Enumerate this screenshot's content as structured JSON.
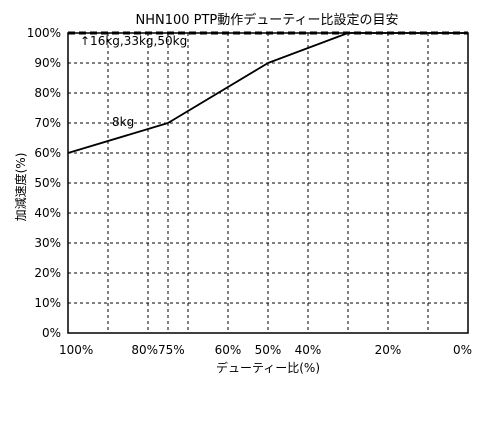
{
  "chart_data": {
    "type": "line",
    "title": "NHN100 PTP動作デューティー比設定の目安",
    "xlabel": "デューティー比(%)",
    "ylabel": "加減速度(%)",
    "x_axis_direction": "reversed",
    "xlim": [
      100,
      0
    ],
    "ylim": [
      0,
      100
    ],
    "x_ticks": [
      100,
      90,
      80,
      75,
      70,
      60,
      50,
      40,
      30,
      20,
      10,
      0
    ],
    "x_tick_labels": [
      {
        "value": 100,
        "label": "100%"
      },
      {
        "value": 80,
        "label": "80%75%"
      },
      {
        "value": 60,
        "label": "60%"
      },
      {
        "value": 50,
        "label": "50%"
      },
      {
        "value": 40,
        "label": "40%"
      },
      {
        "value": 20,
        "label": "20%"
      },
      {
        "value": 0,
        "label": "0%"
      }
    ],
    "y_ticks": [
      0,
      10,
      20,
      30,
      40,
      50,
      60,
      70,
      80,
      90,
      100
    ],
    "y_tick_labels": [
      "0%",
      "10%",
      "20%",
      "30%",
      "40%",
      "50%",
      "60%",
      "70%",
      "80%",
      "90%",
      "100%"
    ],
    "grid": true,
    "grid_style": "dashed",
    "series": [
      {
        "name": "8kg",
        "style": "solid",
        "color": "#000000",
        "points": [
          [
            100,
            60
          ],
          [
            75,
            70
          ],
          [
            50,
            90
          ],
          [
            30,
            100
          ],
          [
            0,
            100
          ]
        ]
      },
      {
        "name": "↑16kg,33kg,50kg",
        "style": "dashed",
        "color": "#000000",
        "points": [
          [
            100,
            100
          ],
          [
            0,
            100
          ]
        ]
      }
    ],
    "annotations": [
      {
        "text": "↑16kg,33kg,50kg",
        "x": 97,
        "y": 96
      },
      {
        "text": "8kg",
        "x": 89,
        "y": 69
      }
    ]
  }
}
